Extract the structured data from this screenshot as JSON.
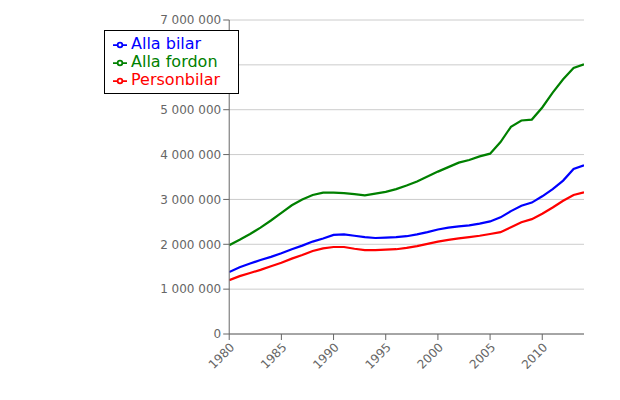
{
  "chart_data": {
    "type": "line",
    "x": [
      1980,
      1981,
      1982,
      1983,
      1984,
      1985,
      1986,
      1987,
      1988,
      1989,
      1990,
      1991,
      1992,
      1993,
      1994,
      1995,
      1996,
      1997,
      1998,
      1999,
      2000,
      2001,
      2002,
      2003,
      2004,
      2005,
      2006,
      2007,
      2008,
      2009,
      2010,
      2011,
      2012,
      2013,
      2014
    ],
    "series": [
      {
        "name": "Alla fordon",
        "color": "#008000",
        "values": [
          1980000,
          2100000,
          2230000,
          2370000,
          2530000,
          2700000,
          2870000,
          3000000,
          3100000,
          3150000,
          3150000,
          3140000,
          3120000,
          3090000,
          3130000,
          3170000,
          3230000,
          3310000,
          3400000,
          3510000,
          3620000,
          3720000,
          3820000,
          3880000,
          3960000,
          4020000,
          4280000,
          4620000,
          4760000,
          4780000,
          5050000,
          5380000,
          5680000,
          5930000,
          6010000
        ]
      },
      {
        "name": "Alla bilar",
        "color": "#0000FF",
        "values": [
          1380000,
          1490000,
          1570000,
          1650000,
          1720000,
          1800000,
          1890000,
          1970000,
          2060000,
          2130000,
          2210000,
          2220000,
          2190000,
          2160000,
          2140000,
          2150000,
          2160000,
          2180000,
          2220000,
          2270000,
          2330000,
          2370000,
          2400000,
          2420000,
          2460000,
          2510000,
          2600000,
          2740000,
          2860000,
          2930000,
          3070000,
          3230000,
          3420000,
          3680000,
          3760000
        ]
      },
      {
        "name": "Personbilar",
        "color": "#FF0000",
        "values": [
          1200000,
          1290000,
          1360000,
          1430000,
          1510000,
          1590000,
          1680000,
          1760000,
          1850000,
          1910000,
          1940000,
          1940000,
          1900000,
          1870000,
          1870000,
          1880000,
          1890000,
          1920000,
          1960000,
          2010000,
          2060000,
          2100000,
          2130000,
          2160000,
          2190000,
          2230000,
          2270000,
          2380000,
          2490000,
          2560000,
          2680000,
          2820000,
          2970000,
          3100000,
          3160000
        ]
      }
    ],
    "xlim": [
      1980,
      2014
    ],
    "xticks": [
      1980,
      1985,
      1990,
      1995,
      2000,
      2005,
      2010
    ],
    "ylim": [
      0,
      7000000
    ],
    "yticks": [
      0,
      {
        "value": 1000000,
        "label": "1 000 000"
      },
      {
        "value": 2000000,
        "label": "2 000 000"
      },
      {
        "value": 3000000,
        "label": "3 000 000"
      },
      {
        "value": 4000000,
        "label": "4 000 000"
      },
      {
        "value": 5000000,
        "label": "5 000 000"
      },
      {
        "value": 6000000,
        "label": "6 000 000"
      },
      {
        "value": 7000000,
        "label": "7 000 000"
      }
    ],
    "grid": "y",
    "legend": "upper left"
  }
}
